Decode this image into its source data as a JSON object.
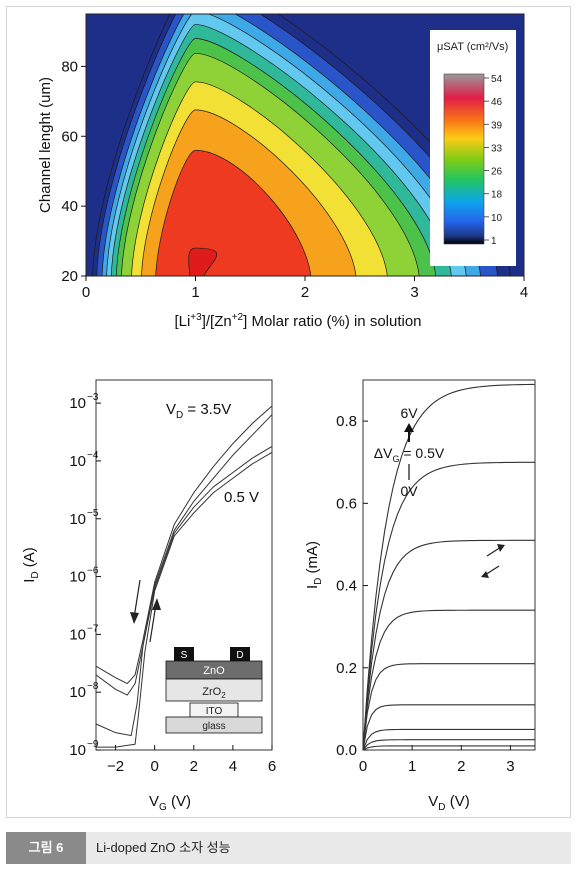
{
  "figure_caption": {
    "tag": "그림 6",
    "text": "Li-doped ZnO 소자 성능"
  },
  "chart_data": [
    {
      "type": "heatmap",
      "xlabel_main": "[Li",
      "xlabel_sup1": "+3",
      "xlabel_mid": "]/[Zn",
      "xlabel_sup2": "+2",
      "xlabel_end": "] Molar ratio (%) in solution",
      "ylabel": "Channel lenght (um)",
      "xlim": [
        0,
        4
      ],
      "ylim": [
        20,
        95
      ],
      "xticks": [
        "0",
        "1",
        "2",
        "3",
        "4"
      ],
      "yticks": [
        "20",
        "40",
        "60",
        "80"
      ],
      "colorbar_title": "μSAT (cm²/Vs)",
      "colorbar_ticks": [
        "54",
        "46",
        "39",
        "33",
        "26",
        "18",
        "10",
        "1"
      ],
      "colorbar_colors": [
        "#9a9a9a",
        "#e11d48",
        "#f97316",
        "#facc15",
        "#84cc16",
        "#22c55e",
        "#0ea5e9",
        "#2563eb",
        "#1e3a8a",
        "#000000"
      ],
      "peak": {
        "x": 1.0,
        "y": 25,
        "value": 54
      },
      "contour_levels": [
        {
          "value": 1,
          "color": "#1e2f8a"
        },
        {
          "value": 5,
          "color": "#2a55c8"
        },
        {
          "value": 10,
          "color": "#3fa9e8"
        },
        {
          "value": 14,
          "color": "#63c8ef"
        },
        {
          "value": 18,
          "color": "#2fb89a"
        },
        {
          "value": 22,
          "color": "#4cc24a"
        },
        {
          "value": 26,
          "color": "#8fd238"
        },
        {
          "value": 33,
          "color": "#f2e034"
        },
        {
          "value": 39,
          "color": "#f7a21c"
        },
        {
          "value": 46,
          "color": "#ef3a22"
        },
        {
          "value": 54,
          "color": "#e01b1b"
        }
      ]
    },
    {
      "type": "line",
      "ylabel": "I",
      "ylabel_sub": "D",
      "ylabel_unit": " (A)",
      "xlabel": "V",
      "xlabel_sub": "G",
      "xlabel_unit": " (V)",
      "xlim": [
        -3,
        6
      ],
      "ylim_log10": [
        -9,
        -2.6
      ],
      "log_scale_y": true,
      "xticks": [
        "−2",
        "0",
        "2",
        "4",
        "6"
      ],
      "ytick_exponents": [
        "-9",
        "-8",
        "-7",
        "-6",
        "-5",
        "-4",
        "-3"
      ],
      "annotation_vd": "V",
      "annotation_vd_sub": "D",
      "annotation_vd_value": " = 3.5V",
      "annotation_low": "0.5 V",
      "inset_layers": {
        "s": "S",
        "d": "D",
        "zno": "ZnO",
        "zro2": "ZrO",
        "zro2_sub": "2",
        "ito": "ITO",
        "glass": "glass"
      },
      "series": [
        {
          "x": [
            -3,
            -2,
            -1.4,
            -1.0,
            -0.6,
            0,
            1,
            2,
            3,
            4,
            5,
            6
          ],
          "log10_y": [
            -7.55,
            -7.75,
            -7.85,
            -7.7,
            -7.1,
            -6.1,
            -5.1,
            -4.55,
            -4.1,
            -3.7,
            -3.35,
            -3.05
          ]
        },
        {
          "x": [
            -3,
            -2,
            -1.4,
            -1.0,
            -0.6,
            0,
            1,
            2,
            3,
            4,
            5,
            6
          ],
          "log10_y": [
            -7.7,
            -7.95,
            -8.05,
            -7.85,
            -7.2,
            -6.2,
            -5.25,
            -4.8,
            -4.45,
            -4.2,
            -3.95,
            -3.75
          ]
        },
        {
          "x": [
            -3,
            -2,
            -1.2,
            -0.9,
            -0.6,
            0,
            1,
            2,
            3,
            4,
            5,
            6
          ],
          "log10_y": [
            -8.55,
            -8.7,
            -8.75,
            -8.2,
            -7.2,
            -6.15,
            -5.2,
            -4.7,
            -4.3,
            -3.9,
            -3.55,
            -3.2
          ]
        },
        {
          "x": [
            -3,
            -2,
            -1.0,
            -0.8,
            -0.5,
            0,
            1,
            2,
            3,
            4,
            5,
            6
          ],
          "log10_y": [
            -8.95,
            -8.95,
            -8.9,
            -8.3,
            -7.3,
            -6.25,
            -5.3,
            -4.9,
            -4.55,
            -4.3,
            -4.05,
            -3.85
          ]
        }
      ]
    },
    {
      "type": "line",
      "ylabel": "I",
      "ylabel_sub": "D",
      "ylabel_unit": " (mA)",
      "xlabel": "V",
      "xlabel_sub": "D",
      "xlabel_unit": " (V)",
      "xlim": [
        0,
        3.5
      ],
      "ylim": [
        0,
        0.9
      ],
      "xticks": [
        "0",
        "1",
        "2",
        "3"
      ],
      "yticks": [
        "0.0",
        "0.2",
        "0.4",
        "0.6",
        "0.8"
      ],
      "annotation_top": "6V",
      "annotation_mid_prefix": "ΔV",
      "annotation_mid_sub": "G",
      "annotation_mid_value": " = 0.5V",
      "annotation_bottom": "0V",
      "series": [
        {
          "vg": 6.0,
          "sat": 0.89
        },
        {
          "vg": 5.5,
          "sat": 0.7
        },
        {
          "vg": 5.0,
          "sat": 0.51
        },
        {
          "vg": 4.5,
          "sat": 0.34
        },
        {
          "vg": 4.0,
          "sat": 0.21
        },
        {
          "vg": 3.5,
          "sat": 0.11
        },
        {
          "vg": 3.0,
          "sat": 0.05
        },
        {
          "vg": 2.5,
          "sat": 0.025
        },
        {
          "vg": 2.0,
          "sat": 0.01
        }
      ]
    }
  ]
}
